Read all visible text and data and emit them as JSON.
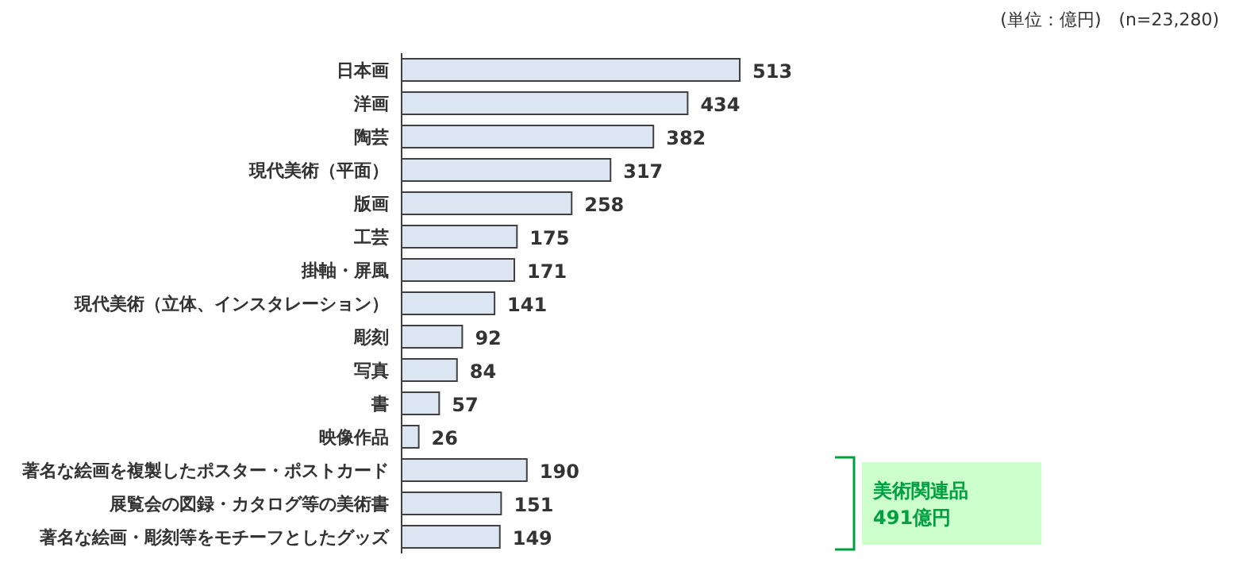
{
  "chart_data": {
    "type": "bar",
    "orientation": "horizontal",
    "data_labels": true,
    "categories": [
      "日本画",
      "洋画",
      "陶芸",
      "現代美術（平面）",
      "版画",
      "工芸",
      "掛軸・屏風",
      "現代美術（立体、インスタレーション）",
      "彫刻",
      "写真",
      "書",
      "映像作品",
      "著名な絵画を複製したポスター・ポストカード",
      "展覧会の図録・カタログ等の美術書",
      "著名な絵画・彫刻等をモチーフとしたグッズ"
    ],
    "values": [
      513,
      434,
      382,
      317,
      258,
      175,
      171,
      141,
      92,
      84,
      57,
      26,
      190,
      151,
      149
    ],
    "color": "#dce6f2",
    "annotations": [
      "(単位：億円)　(n=23,280)",
      "美術関連品\n491億円"
    ]
  }
}
